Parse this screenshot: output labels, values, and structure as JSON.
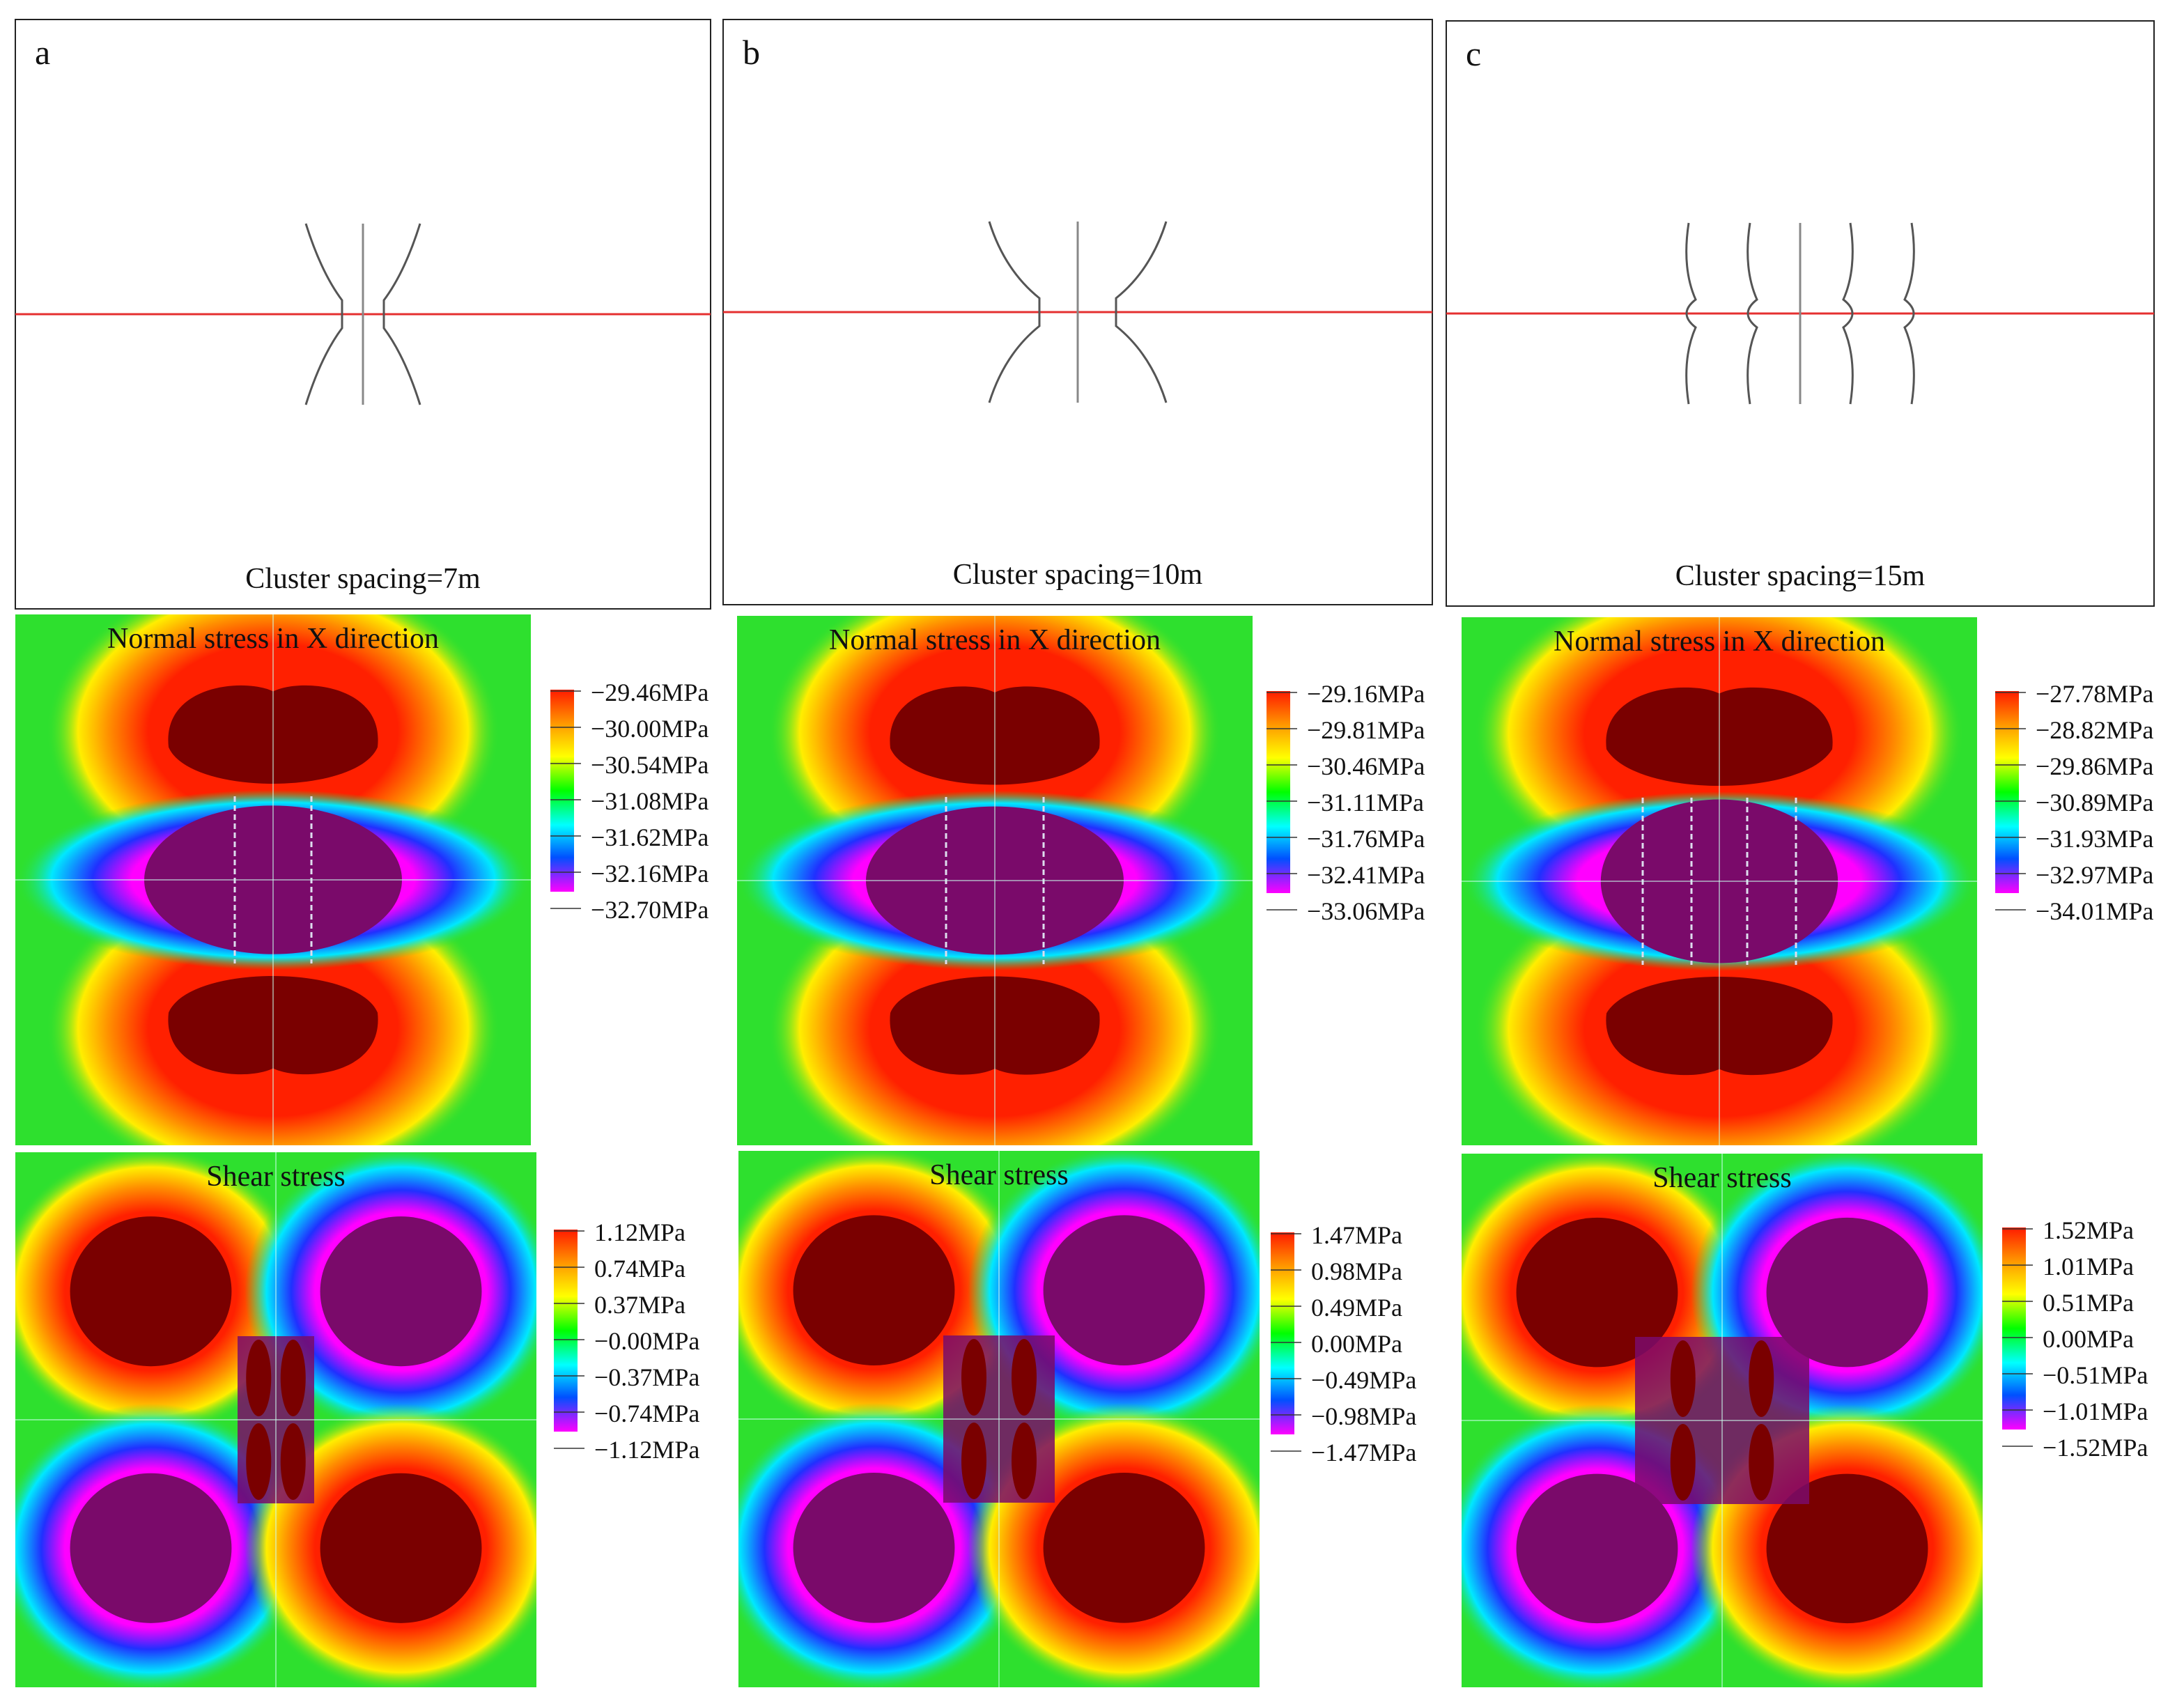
{
  "columns": [
    {
      "id": "a",
      "panel_label": "a",
      "caption": "Cluster spacing=7m",
      "outer_fracture_pattern": "curved-inward",
      "normal": {
        "title": "Normal stress in X direction",
        "legend": [
          "−29.46MPa",
          "−30.00MPa",
          "−30.54MPa",
          "−31.08MPa",
          "−31.62MPa",
          "−32.16MPa",
          "−32.70MPa"
        ]
      },
      "shear": {
        "title": "Shear stress",
        "legend": [
          "1.12MPa",
          "0.74MPa",
          "0.37MPa",
          "−0.00MPa",
          "−0.37MPa",
          "−0.74MPa",
          "−1.12MPa"
        ]
      }
    },
    {
      "id": "b",
      "panel_label": "b",
      "caption": "Cluster spacing=10m",
      "outer_fracture_pattern": "curved-inward",
      "normal": {
        "title": "Normal stress in X direction",
        "legend": [
          "−29.16MPa",
          "−29.81MPa",
          "−30.46MPa",
          "−31.11MPa",
          "−31.76MPa",
          "−32.41MPa",
          "−33.06MPa"
        ]
      },
      "shear": {
        "title": "Shear stress",
        "legend": [
          "1.47MPa",
          "0.98MPa",
          "0.49MPa",
          "0.00MPa",
          "−0.49MPa",
          "−0.98MPa",
          "−1.47MPa"
        ]
      }
    },
    {
      "id": "c",
      "panel_label": "c",
      "caption": "Cluster spacing=15m",
      "outer_fracture_pattern": "wavy-five-lines",
      "normal": {
        "title": "Normal stress in X direction",
        "legend": [
          "−27.78MPa",
          "−28.82MPa",
          "−29.86MPa",
          "−30.89MPa",
          "−31.93MPa",
          "−32.97MPa",
          "−34.01MPa"
        ]
      },
      "shear": {
        "title": "Shear stress",
        "legend": [
          "1.52MPa",
          "1.01MPa",
          "0.51MPa",
          "0.00MPa",
          "−0.51MPa",
          "−1.01MPa",
          "−1.52MPa"
        ]
      }
    }
  ],
  "colors": {
    "field_green": "#2ee02e",
    "peak_positive": "#7a0000",
    "peak_negative": "#7a0a6a",
    "fracture_line": "#555555",
    "wellbore_line": "#e53030"
  },
  "colorbar_stops": [
    "#ff1a00",
    "#ff9a00",
    "#ffff00",
    "#00ff00",
    "#00ffff",
    "#0050ff",
    "#ff00ff"
  ]
}
